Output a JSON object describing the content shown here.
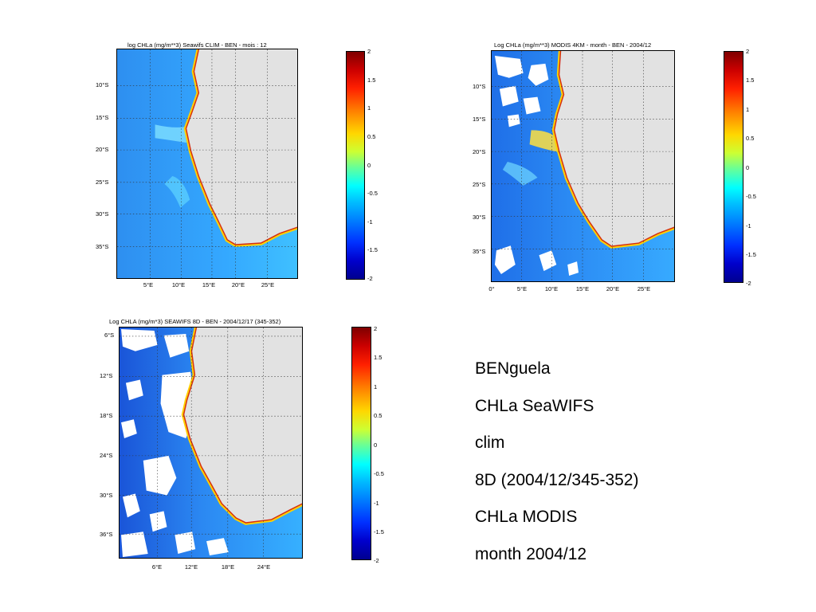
{
  "colors": {
    "land": "#e2e2e2",
    "ocean": "#33aaff",
    "coast_high": "#d63010",
    "upwelling": "#ffcc00",
    "cloud": "#ffffff"
  },
  "panels": [
    {
      "title": "log CHLa (mg/m**3)  Seawifs CLIM - BEN -  mois : 12",
      "lat_labels": [
        "10°S",
        "15°S",
        "20°S",
        "25°S",
        "30°S",
        "35°S"
      ],
      "lon_labels": [
        "5°E",
        "10°E",
        "15°E",
        "20°E",
        "25°E"
      ],
      "colorbar_ticks": [
        "2",
        "1.5",
        "1",
        "0.5",
        "0",
        "-0.5",
        "-1",
        "-1.5",
        "-2"
      ]
    },
    {
      "title": "Log CHLa (mg/m**3) MODIS 4KM - month - BEN - 2004/12",
      "lat_labels": [
        "10°S",
        "15°S",
        "20°S",
        "25°S",
        "30°S",
        "35°S"
      ],
      "lon_labels": [
        "0°",
        "5°E",
        "10°E",
        "15°E",
        "20°E",
        "25°E"
      ],
      "colorbar_ticks": [
        "2",
        "1.5",
        "1",
        "0.5",
        "0",
        "-0.5",
        "-1",
        "-1.5",
        "-2"
      ]
    },
    {
      "title": "Log CHLA (mg/m*3)  SEAWIFS  8D - BEN - 2004/12/17 (345-352)",
      "lat_labels": [
        "6°S",
        "12°S",
        "18°S",
        "24°S",
        "30°S",
        "36°S"
      ],
      "lon_labels": [
        "6°E",
        "12°E",
        "18°E",
        "24°E"
      ],
      "colorbar_ticks": [
        "2",
        "1.5",
        "1",
        "0.5",
        "0",
        "-0.5",
        "-1",
        "-1.5",
        "-2"
      ]
    }
  ],
  "legend": [
    "BENguela",
    "CHLa SeaWIFS",
    "clim",
    "8D (2004/12/345-352)",
    "CHLa MODIS",
    "month 2004/12"
  ]
}
